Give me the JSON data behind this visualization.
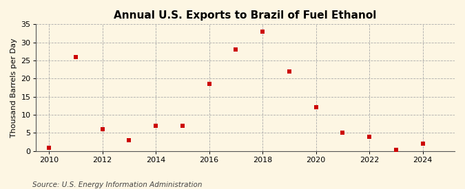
{
  "title": "Annual U.S. Exports to Brazil of Fuel Ethanol",
  "ylabel": "Thousand Barrels per Day",
  "source": "Source: U.S. Energy Information Administration",
  "years": [
    2010,
    2011,
    2012,
    2013,
    2014,
    2015,
    2016,
    2017,
    2018,
    2019,
    2020,
    2021,
    2022,
    2023,
    2024
  ],
  "values": [
    0.8,
    26.0,
    6.0,
    3.0,
    7.0,
    7.0,
    18.5,
    28.0,
    33.0,
    22.0,
    12.0,
    5.0,
    4.0,
    0.3,
    2.0
  ],
  "marker_color": "#cc0000",
  "marker": "s",
  "marker_size": 4,
  "xlim": [
    2009.5,
    2025.2
  ],
  "ylim": [
    0,
    35
  ],
  "yticks": [
    0,
    5,
    10,
    15,
    20,
    25,
    30,
    35
  ],
  "xticks": [
    2010,
    2012,
    2014,
    2016,
    2018,
    2020,
    2022,
    2024
  ],
  "background_color": "#fdf6e3",
  "grid_color": "#aaaaaa",
  "title_fontsize": 11,
  "label_fontsize": 8,
  "tick_fontsize": 8,
  "source_fontsize": 7.5
}
